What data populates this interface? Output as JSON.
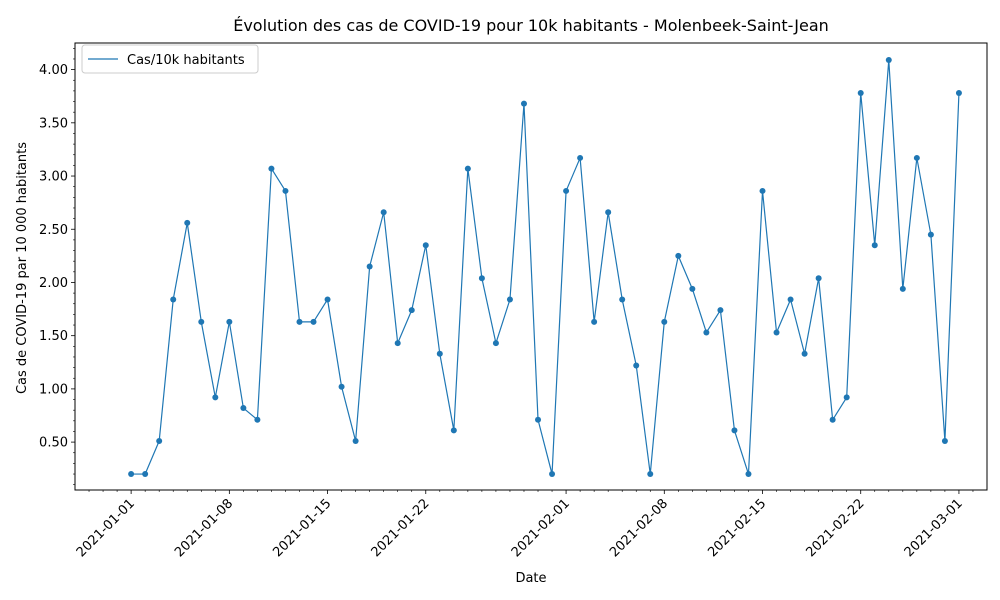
{
  "chart_data": {
    "type": "line",
    "title": "Évolution des cas de COVID-19 pour 10k habitants - Molenbeek-Saint-Jean",
    "xlabel": "Date",
    "ylabel": "Cas de COVID-19 par 10 000 habitants",
    "x_tick_labels": [
      "2021-01-01",
      "2021-01-08",
      "2021-01-15",
      "2021-01-22",
      "2021-02-01",
      "2021-02-08",
      "2021-02-15",
      "2021-02-22",
      "2021-03-01"
    ],
    "y_tick_labels": [
      "0.50",
      "1.00",
      "1.50",
      "2.00",
      "2.50",
      "3.00",
      "3.50",
      "4.00"
    ],
    "ylim": [
      0.05,
      4.25
    ],
    "xlim": [
      "2020-12-28",
      "2021-03-03"
    ],
    "grid": false,
    "legend_position": "upper-left",
    "series": [
      {
        "name": "Cas/10k habitants",
        "color": "#1f77b4",
        "x": [
          "2021-01-01",
          "2021-01-02",
          "2021-01-03",
          "2021-01-04",
          "2021-01-05",
          "2021-01-06",
          "2021-01-07",
          "2021-01-08",
          "2021-01-09",
          "2021-01-10",
          "2021-01-11",
          "2021-01-12",
          "2021-01-13",
          "2021-01-14",
          "2021-01-15",
          "2021-01-16",
          "2021-01-17",
          "2021-01-18",
          "2021-01-19",
          "2021-01-20",
          "2021-01-21",
          "2021-01-22",
          "2021-01-23",
          "2021-01-24",
          "2021-01-25",
          "2021-01-26",
          "2021-01-27",
          "2021-01-28",
          "2021-01-29",
          "2021-01-30",
          "2021-01-31",
          "2021-02-01",
          "2021-02-02",
          "2021-02-03",
          "2021-02-04",
          "2021-02-05",
          "2021-02-06",
          "2021-02-07",
          "2021-02-08",
          "2021-02-09",
          "2021-02-10",
          "2021-02-11",
          "2021-02-12",
          "2021-02-13",
          "2021-02-14",
          "2021-02-15",
          "2021-02-16",
          "2021-02-17",
          "2021-02-18",
          "2021-02-19",
          "2021-02-20",
          "2021-02-21",
          "2021-02-22",
          "2021-02-23",
          "2021-02-24",
          "2021-02-25",
          "2021-02-26",
          "2021-02-27",
          "2021-02-28",
          "2021-03-01"
        ],
        "y": [
          0.2,
          0.2,
          0.51,
          1.84,
          2.56,
          1.63,
          0.92,
          1.63,
          0.82,
          0.71,
          3.07,
          2.86,
          1.63,
          1.63,
          1.84,
          1.02,
          0.51,
          2.15,
          2.66,
          1.43,
          1.74,
          2.35,
          1.33,
          0.61,
          3.07,
          2.04,
          1.43,
          1.84,
          3.68,
          0.71,
          0.2,
          2.86,
          3.17,
          1.63,
          2.66,
          1.84,
          1.22,
          0.2,
          1.63,
          2.25,
          1.94,
          1.53,
          1.74,
          0.61,
          0.2,
          2.86,
          1.53,
          1.84,
          1.33,
          2.04,
          0.71,
          0.92,
          3.78,
          2.35,
          4.09,
          1.94,
          3.17,
          2.45,
          0.51,
          3.78
        ]
      }
    ]
  }
}
